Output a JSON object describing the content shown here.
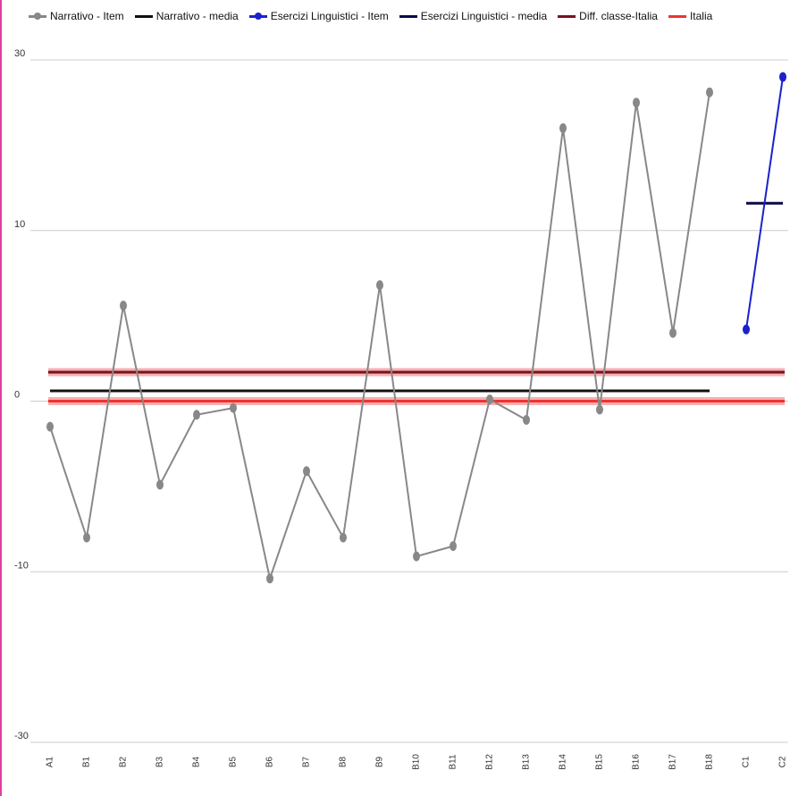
{
  "chart_data": {
    "type": "line",
    "categories": [
      "A1",
      "B1",
      "B2",
      "B3",
      "B4",
      "B5",
      "B6",
      "B7",
      "B8",
      "B9",
      "B10",
      "B11",
      "B12",
      "B13",
      "B14",
      "B15",
      "B16",
      "B17",
      "B18",
      "C1",
      "C2"
    ],
    "yticks": [
      "30",
      "10",
      "0",
      "-10",
      "-30"
    ],
    "ylim": [
      -20,
      20
    ],
    "grid": true,
    "legend_position": "top",
    "series": [
      {
        "name": "Narrativo - Item",
        "kind": "points",
        "color": "#888888",
        "values": [
          -1.5,
          -8,
          5.6,
          -4.9,
          -0.8,
          -0.4,
          -10.4,
          -4.1,
          -8,
          6.8,
          -9.1,
          -8.5,
          0.1,
          -1.1,
          16,
          -0.5,
          17.5,
          4,
          18.1,
          null,
          null
        ]
      },
      {
        "name": "Narrativo - media",
        "kind": "flat",
        "color": "#111111",
        "value": 0.6,
        "from": 0,
        "to": 18
      },
      {
        "name": "Esercizi Linguistici - Item",
        "kind": "points",
        "color": "#1a22cc",
        "values": [
          null,
          null,
          null,
          null,
          null,
          null,
          null,
          null,
          null,
          null,
          null,
          null,
          null,
          null,
          null,
          null,
          null,
          null,
          null,
          4.2,
          19
        ]
      },
      {
        "name": "Esercizi Linguistici - media",
        "kind": "flat",
        "color": "#0a0a4a",
        "value": 11.6,
        "from": 19,
        "to": 20
      },
      {
        "name": "Diff. classe-Italia",
        "kind": "flat",
        "color": "#7a1020",
        "value": 1.7,
        "from": -0.05,
        "to": 20.05
      },
      {
        "name": "Italia",
        "kind": "flat",
        "color": "#ee3333",
        "value": 0,
        "from": -0.05,
        "to": 20.05
      }
    ]
  }
}
